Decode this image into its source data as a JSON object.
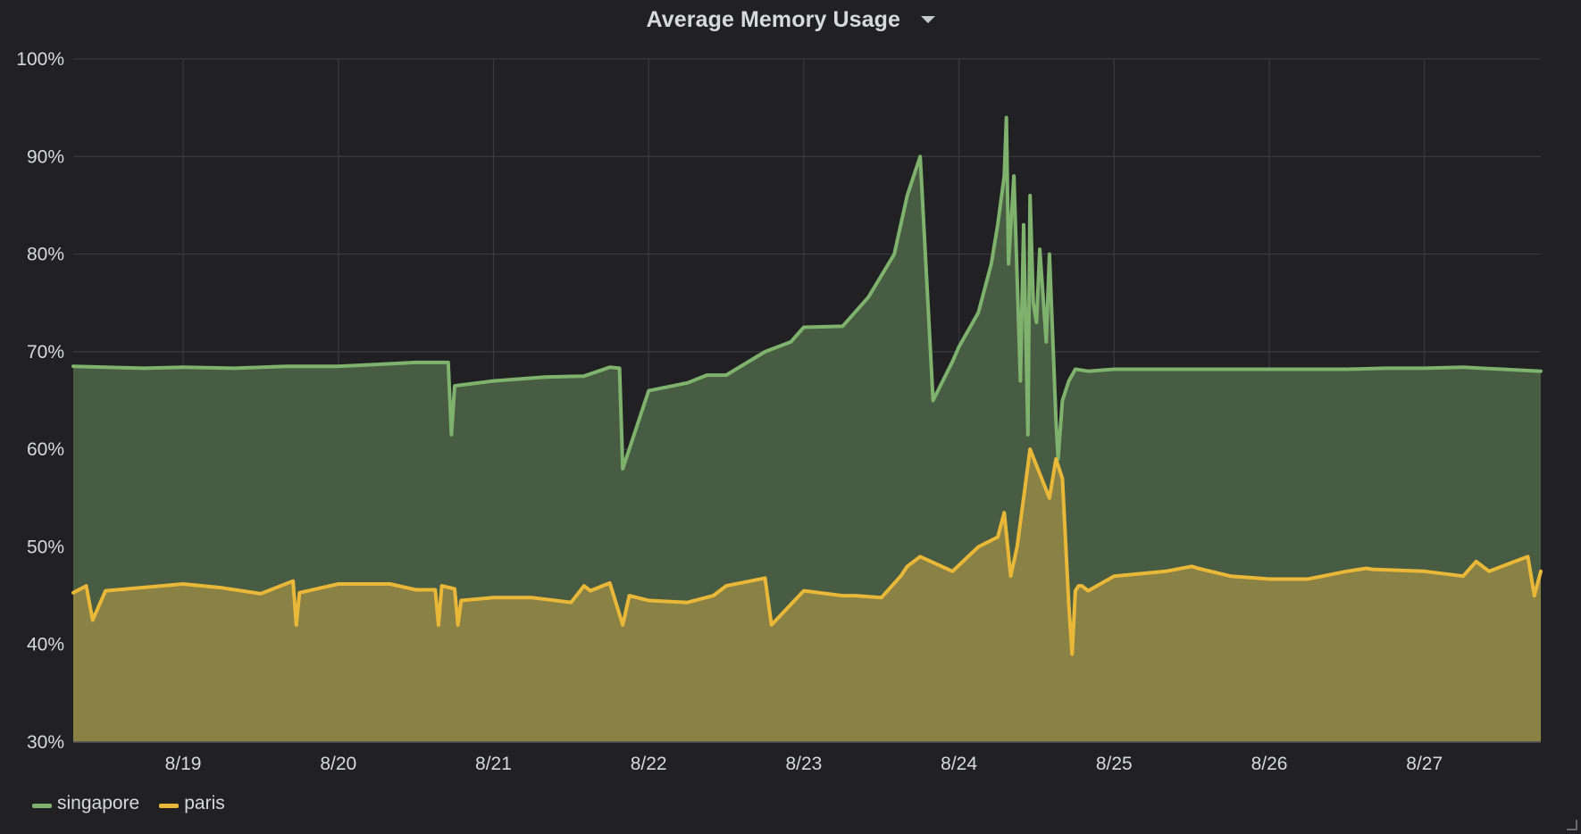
{
  "panel": {
    "title": "Average Memory Usage",
    "caret_icon": "chevron-down-icon"
  },
  "colors": {
    "background": "#212124",
    "grid": "#3a3a3e",
    "singapore": "#7eb26d",
    "paris": "#eab839",
    "singapore_fill": "#475c42",
    "paris_fill": "#8a8144"
  },
  "chart_data": {
    "type": "area",
    "title": "Average Memory Usage",
    "xlabel": "",
    "ylabel": "",
    "ylim": [
      30,
      100
    ],
    "y_unit": "%",
    "y_ticks": [
      "30%",
      "40%",
      "50%",
      "60%",
      "70%",
      "80%",
      "90%",
      "100%"
    ],
    "x_ticks": [
      "8/19",
      "8/20",
      "8/21",
      "8/22",
      "8/23",
      "8/24",
      "8/25",
      "8/26",
      "8/27"
    ],
    "xlim": [
      "8/18 07:00",
      "8/27 18:00"
    ],
    "grid": true,
    "legend": "bottom-left",
    "series": [
      {
        "name": "singapore",
        "color": "#7eb26d",
        "x": [
          "8/18 07:00",
          "8/18 12:00",
          "8/18 18:00",
          "8/19 00:00",
          "8/19 08:00",
          "8/19 16:00",
          "8/20 00:00",
          "8/20 06:00",
          "8/20 12:00",
          "8/20 17:00",
          "8/20 17:30",
          "8/20 18:00",
          "8/21 00:00",
          "8/21 08:00",
          "8/21 14:00",
          "8/21 18:00",
          "8/21 19:30",
          "8/21 20:00",
          "8/22 00:00",
          "8/22 06:00",
          "8/22 09:00",
          "8/22 12:00",
          "8/22 18:00",
          "8/22 22:00",
          "8/23 00:00",
          "8/23 06:00",
          "8/23 10:00",
          "8/23 14:00",
          "8/23 15:00",
          "8/23 16:00",
          "8/23 17:00",
          "8/23 18:00",
          "8/23 20:00",
          "8/23 23:00",
          "8/24 00:00",
          "8/24 03:00",
          "8/24 05:00",
          "8/24 06:00",
          "8/24 07:00",
          "8/24 07:20",
          "8/24 07:40",
          "8/24 08:30",
          "8/24 09:30",
          "8/24 10:00",
          "8/24 10:40",
          "8/24 11:00",
          "8/24 11:30",
          "8/24 12:00",
          "8/24 12:30",
          "8/24 13:30",
          "8/24 14:00",
          "8/24 15:00",
          "8/24 15:20",
          "8/24 16:00",
          "8/24 16:30",
          "8/24 17:00",
          "8/24 17:20",
          "8/24 18:00",
          "8/24 20:00",
          "8/25 00:00",
          "8/25 06:00",
          "8/25 10:00",
          "8/25 16:00",
          "8/26 00:00",
          "8/26 06:00",
          "8/26 12:00",
          "8/26 18:00",
          "8/27 00:00",
          "8/27 06:00",
          "8/27 12:00",
          "8/27 18:00"
        ],
        "values": [
          68.5,
          68.4,
          68.3,
          68.4,
          68.3,
          68.5,
          68.5,
          68.7,
          68.9,
          68.9,
          61.5,
          66.5,
          67,
          67.4,
          67.5,
          68.4,
          68.3,
          58,
          66,
          66.8,
          67.6,
          67.6,
          70,
          71,
          72.5,
          72.6,
          75.6,
          80,
          83,
          86,
          88,
          90,
          65,
          69,
          70.5,
          74,
          79,
          83,
          88,
          94,
          79,
          88,
          67,
          83,
          61.5,
          86,
          75,
          73,
          80.5,
          71,
          80,
          63,
          59,
          65,
          66,
          67,
          67.4,
          68.2,
          68,
          68.2,
          68.2,
          68.2,
          68.2,
          68.2,
          68.2,
          68.2,
          68.3,
          68.3,
          68.4,
          68.2,
          68
        ]
      },
      {
        "name": "paris",
        "color": "#eab839",
        "x": [
          "8/18 07:00",
          "8/18 09:00",
          "8/18 10:00",
          "8/18 12:00",
          "8/19 00:00",
          "8/19 06:00",
          "8/19 12:00",
          "8/19 17:00",
          "8/19 17:30",
          "8/19 18:00",
          "8/20 00:00",
          "8/20 08:00",
          "8/20 12:00",
          "8/20 15:00",
          "8/20 15:30",
          "8/20 16:00",
          "8/20 18:00",
          "8/20 18:30",
          "8/20 19:00",
          "8/21 00:00",
          "8/21 06:00",
          "8/21 12:00",
          "8/21 14:00",
          "8/21 15:00",
          "8/21 18:00",
          "8/21 20:00",
          "8/21 21:00",
          "8/22 00:00",
          "8/22 06:00",
          "8/22 10:00",
          "8/22 12:00",
          "8/22 18:00",
          "8/22 19:00",
          "8/23 00:00",
          "8/23 06:00",
          "8/23 08:00",
          "8/23 12:00",
          "8/23 15:00",
          "8/23 16:00",
          "8/23 18:00",
          "8/23 23:00",
          "8/24 03:00",
          "8/24 06:00",
          "8/24 07:00",
          "8/24 08:00",
          "8/24 09:00",
          "8/24 10:00",
          "8/24 11:00",
          "8/24 14:00",
          "8/24 15:00",
          "8/24 16:00",
          "8/24 17:00",
          "8/24 17:30",
          "8/24 18:00",
          "8/24 18:30",
          "8/24 19:00",
          "8/24 20:00",
          "8/25 00:00",
          "8/25 08:00",
          "8/25 12:00",
          "8/25 13:00",
          "8/25 18:00",
          "8/26 00:00",
          "8/26 06:00",
          "8/26 12:00",
          "8/26 15:00",
          "8/26 16:00",
          "8/27 00:00",
          "8/27 06:00",
          "8/27 08:00",
          "8/27 10:00",
          "8/27 12:00",
          "8/27 14:00",
          "8/27 16:00",
          "8/27 17:00",
          "8/27 18:00"
        ],
        "values": [
          45.3,
          46,
          42.5,
          45.5,
          46.2,
          45.8,
          45.2,
          46.5,
          42,
          45.3,
          46.2,
          46.2,
          45.6,
          45.6,
          42,
          46,
          45.7,
          42,
          44.5,
          44.8,
          44.8,
          44.3,
          46,
          45.5,
          46.3,
          42,
          45,
          44.5,
          44.3,
          45,
          46,
          46.8,
          42,
          45.5,
          45,
          45,
          44.8,
          47,
          48,
          49,
          47.5,
          50,
          51,
          53.5,
          47,
          50,
          55,
          60,
          55,
          59,
          57,
          44,
          39,
          45.5,
          46,
          46,
          45.5,
          47,
          47.5,
          48,
          47.8,
          47,
          46.7,
          46.7,
          47.5,
          47.8,
          47.7,
          47.5,
          47,
          48.5,
          47.5,
          48,
          48.5,
          49,
          45,
          47.5
        ]
      }
    ]
  },
  "legend": {
    "items": [
      {
        "label": "singapore",
        "color": "#7eb26d"
      },
      {
        "label": "paris",
        "color": "#eab839"
      }
    ]
  }
}
